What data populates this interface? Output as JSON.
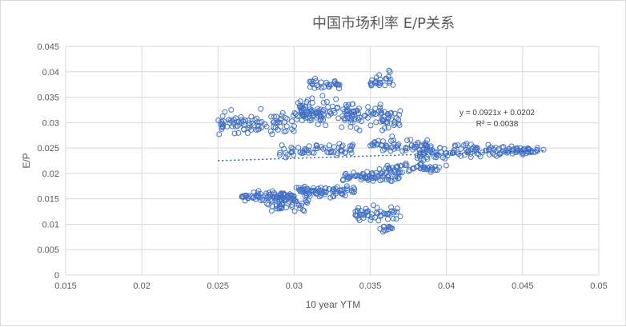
{
  "chart_data": {
    "type": "scatter",
    "title": "中国市场利率 E/P关系",
    "xlabel": "10 year YTM",
    "ylabel": "E/P",
    "xlim": [
      0.015,
      0.05
    ],
    "ylim": [
      0,
      0.045
    ],
    "x_ticks": [
      "0.015",
      "0.02",
      "0.025",
      "0.03",
      "0.035",
      "0.04",
      "0.045",
      "0.05"
    ],
    "y_ticks": [
      "0",
      "0.005",
      "0.01",
      "0.015",
      "0.02",
      "0.025",
      "0.03",
      "0.035",
      "0.04",
      "0.045"
    ],
    "grid": true,
    "marker": "open-circle",
    "series_color": "#4472c4",
    "trendline": {
      "type": "linear",
      "slope": 0.0921,
      "intercept": 0.0202,
      "x_range": [
        0.025,
        0.0465
      ],
      "equation": "y = 0.0921x + 0.0202",
      "r_squared": "R² = 0.0038"
    },
    "clusters": [
      {
        "x_range": [
          0.025,
          0.03
        ],
        "y_center": 0.03,
        "y_spread": 0.0018,
        "n": 90
      },
      {
        "x_range": [
          0.029,
          0.034
        ],
        "y_center": 0.0245,
        "y_spread": 0.001,
        "n": 60
      },
      {
        "x_range": [
          0.03,
          0.034
        ],
        "y_center": 0.032,
        "y_spread": 0.0022,
        "n": 120
      },
      {
        "x_range": [
          0.031,
          0.033
        ],
        "y_center": 0.0375,
        "y_spread": 0.0008,
        "n": 30
      },
      {
        "x_range": [
          0.034,
          0.037
        ],
        "y_center": 0.031,
        "y_spread": 0.002,
        "n": 60
      },
      {
        "x_range": [
          0.035,
          0.0365
        ],
        "y_center": 0.038,
        "y_spread": 0.0014,
        "n": 25
      },
      {
        "x_range": [
          0.035,
          0.039
        ],
        "y_center": 0.0255,
        "y_spread": 0.001,
        "n": 60
      },
      {
        "x_range": [
          0.0265,
          0.03
        ],
        "y_center": 0.0155,
        "y_spread": 0.0008,
        "n": 80
      },
      {
        "x_range": [
          0.028,
          0.031
        ],
        "y_center": 0.014,
        "y_spread": 0.001,
        "n": 40
      },
      {
        "x_range": [
          0.03,
          0.034
        ],
        "y_center": 0.0165,
        "y_spread": 0.0008,
        "n": 80
      },
      {
        "x_range": [
          0.033,
          0.037
        ],
        "y_center": 0.0195,
        "y_spread": 0.001,
        "n": 70
      },
      {
        "x_range": [
          0.036,
          0.04
        ],
        "y_center": 0.021,
        "y_spread": 0.0008,
        "n": 50
      },
      {
        "x_range": [
          0.034,
          0.037
        ],
        "y_center": 0.012,
        "y_spread": 0.0012,
        "n": 50
      },
      {
        "x_range": [
          0.0355,
          0.0365
        ],
        "y_center": 0.0092,
        "y_spread": 0.0005,
        "n": 12
      },
      {
        "x_range": [
          0.038,
          0.04
        ],
        "y_center": 0.024,
        "y_spread": 0.0012,
        "n": 40
      },
      {
        "x_range": [
          0.04,
          0.044
        ],
        "y_center": 0.0245,
        "y_spread": 0.001,
        "n": 60
      },
      {
        "x_range": [
          0.044,
          0.0465
        ],
        "y_center": 0.0245,
        "y_spread": 0.0007,
        "n": 40
      }
    ]
  }
}
